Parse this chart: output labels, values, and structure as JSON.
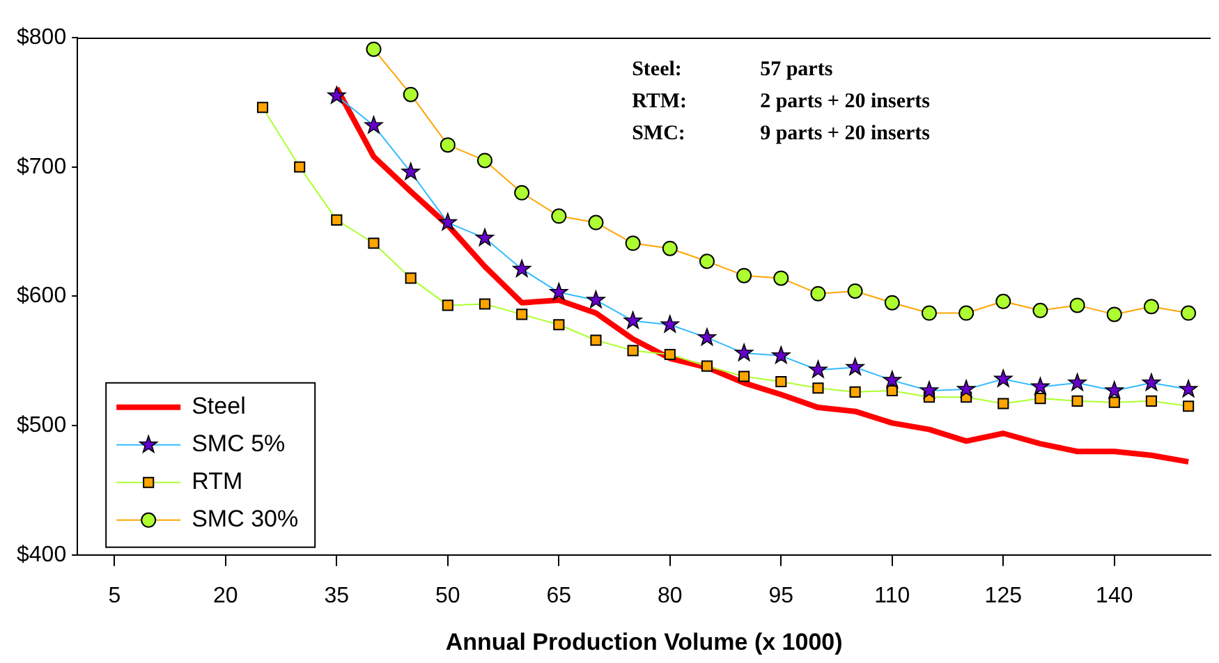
{
  "chart_data": {
    "type": "line",
    "xlabel": "Annual Production Volume (x 1000)",
    "xlim": [
      0,
      153
    ],
    "xticks": [
      5,
      20,
      35,
      50,
      65,
      80,
      95,
      110,
      125,
      140
    ],
    "ylim": [
      400,
      800
    ],
    "yticks": [
      {
        "value": 400,
        "label": "$400"
      },
      {
        "value": 500,
        "label": "$500"
      },
      {
        "value": 600,
        "label": "$600"
      },
      {
        "value": 700,
        "label": "$700"
      },
      {
        "value": 800,
        "label": "$800"
      }
    ],
    "grid": false,
    "legend": "bottom left",
    "annotations": [
      "Steel: 57 parts",
      "RTM: 2 parts + 20 inserts",
      "SMC: 9 parts + 20 inserts"
    ],
    "series": [
      {
        "name": "Steel",
        "color": "#ff0000",
        "marker": "none",
        "x": [
          35,
          40,
          45,
          50,
          55,
          60,
          65,
          70,
          75,
          80,
          85,
          90,
          95,
          100,
          105,
          110,
          115,
          120,
          125,
          130,
          135,
          140,
          145,
          150
        ],
        "values": [
          761,
          708,
          681,
          655,
          623,
          595,
          597,
          587,
          567,
          552,
          545,
          533,
          524,
          514,
          511,
          502,
          497,
          488,
          494,
          486,
          480,
          480,
          477,
          472
        ]
      },
      {
        "name": "SMC 5%",
        "color": "#33bbff",
        "marker": "star",
        "colors": [
          "#6600cc",
          "#6600cc",
          "#6600cc",
          "#6600cc",
          "#6600cc",
          "#6600cc",
          "#6600cc",
          "#6600cc",
          "#6600cc",
          "#6600cc",
          "#6600cc",
          "#6600cc",
          "#6600cc",
          "#6600cc",
          "#6600cc",
          "#6600cc",
          "#6600cc",
          "#6600cc",
          "#6600cc",
          "#6600cc",
          "#6600cc",
          "#6600cc",
          "#6600cc",
          "#6600cc"
        ],
        "x": [
          35,
          40,
          45,
          50,
          55,
          60,
          65,
          70,
          75,
          80,
          85,
          90,
          95,
          100,
          105,
          110,
          115,
          120,
          125,
          130,
          135,
          140,
          145,
          150
        ],
        "values": [
          755,
          732,
          696,
          657,
          645,
          621,
          603,
          597,
          581,
          578,
          568,
          556,
          554,
          543,
          545,
          535,
          527,
          528,
          536,
          530,
          533,
          527,
          533,
          528
        ]
      },
      {
        "name": "RTM",
        "color": "#adff2f",
        "marker": "square",
        "colors": [
          "#ffa500",
          "#ffa500",
          "#ffa500",
          "#ffa500",
          "#ffa500",
          "#ffa500",
          "#ffa500",
          "#ffa500",
          "#ffa500",
          "#ffa500",
          "#ffa500",
          "#ffa500",
          "#ffa500",
          "#ffa500",
          "#ffa500",
          "#ffa500",
          "#ffa500",
          "#ffa500",
          "#ffa500",
          "#ffa500",
          "#ffa500",
          "#ffa500",
          "#ffa500",
          "#ffa500",
          "#ffa500",
          "#ffa500"
        ],
        "x": [
          25,
          30,
          35,
          40,
          45,
          50,
          55,
          60,
          65,
          70,
          75,
          80,
          85,
          90,
          95,
          100,
          105,
          110,
          115,
          120,
          125,
          130,
          135,
          140,
          145,
          150
        ],
        "values": [
          746,
          700,
          659,
          641,
          614,
          593,
          594,
          586,
          578,
          566,
          558,
          555,
          546,
          538,
          534,
          529,
          526,
          527,
          522,
          522,
          517,
          521,
          519,
          518,
          519,
          515
        ]
      },
      {
        "name": "SMC 30%",
        "color": "#ffa500",
        "marker": "circle",
        "colors": [
          "#adff2f",
          "#adff2f",
          "#adff2f",
          "#adff2f",
          "#adff2f",
          "#adff2f",
          "#adff2f",
          "#adff2f",
          "#adff2f",
          "#adff2f",
          "#adff2f",
          "#adff2f",
          "#adff2f",
          "#adff2f",
          "#adff2f",
          "#adff2f",
          "#adff2f",
          "#adff2f",
          "#adff2f",
          "#adff2f",
          "#adff2f",
          "#adff2f",
          "#adff2f"
        ],
        "x": [
          40,
          45,
          50,
          55,
          60,
          65,
          70,
          75,
          80,
          85,
          90,
          95,
          100,
          105,
          110,
          115,
          120,
          125,
          130,
          135,
          140,
          145,
          150
        ],
        "values": [
          791,
          756,
          717,
          705,
          680,
          662,
          657,
          641,
          637,
          627,
          616,
          614,
          602,
          604,
          595,
          587,
          587,
          596,
          589,
          593,
          586,
          592,
          587
        ]
      }
    ]
  }
}
